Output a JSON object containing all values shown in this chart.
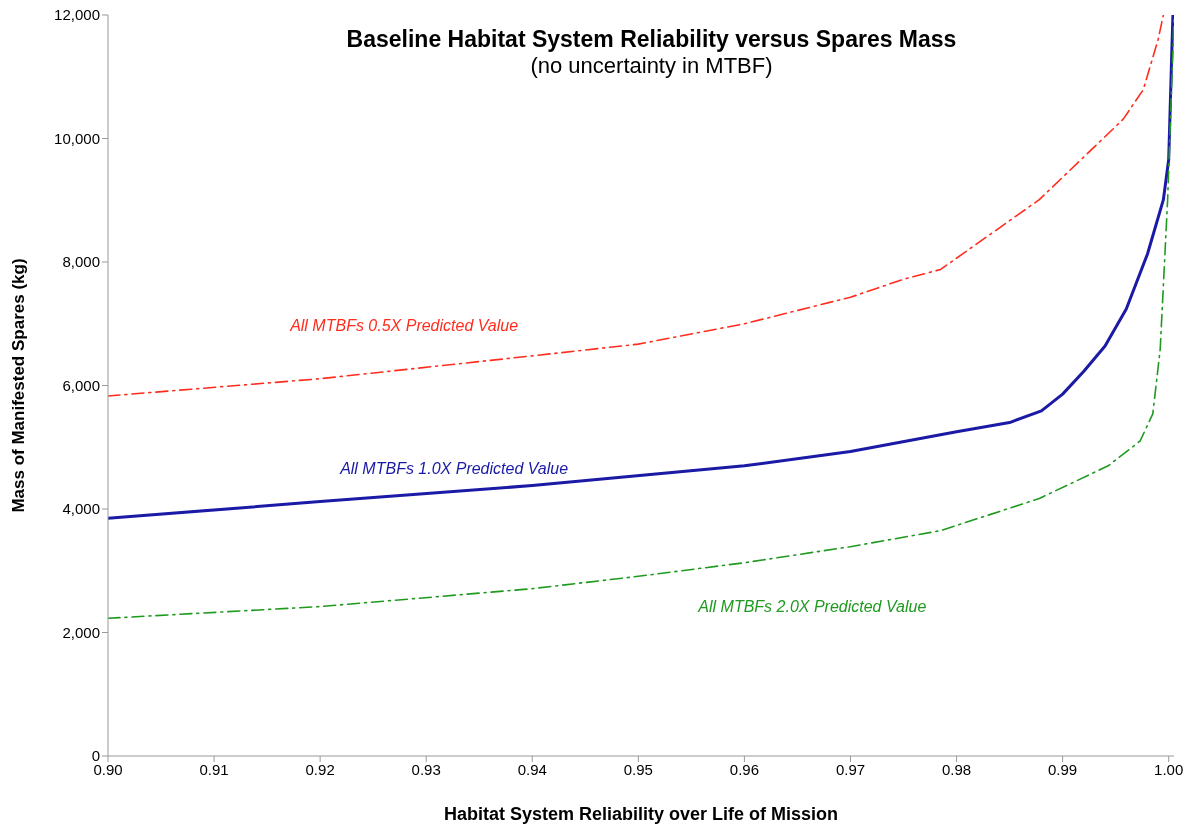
{
  "chart_data": {
    "type": "line",
    "title": "Baseline Habitat System Reliability versus Spares Mass",
    "subtitle": "(no uncertainty in MTBF)",
    "xlabel": "Habitat System Reliability over Life of Mission",
    "ylabel": "Mass of Manifested Spares (kg)",
    "series": [
      {
        "name": "All MTBFs 0.5X Predicted Value",
        "color": "#ff2d1e",
        "line_style": "dashdot",
        "x": [
          0.9,
          0.92,
          0.94,
          0.95,
          0.96,
          0.97,
          0.975,
          0.9785,
          0.9878,
          0.9957,
          0.9976,
          0.999,
          0.9995
        ],
        "values": [
          5830,
          6110,
          6480,
          6670,
          7000,
          7430,
          7720,
          7880,
          9010,
          10310,
          10790,
          11600,
          12000
        ]
      },
      {
        "name": "All MTBFs 1.0X Predicted Value",
        "color": "#1a1aa6",
        "line_style": "solid",
        "x": [
          0.9,
          0.92,
          0.94,
          0.96,
          0.97,
          0.98,
          0.985,
          0.988,
          0.99,
          0.992,
          0.994,
          0.996,
          0.998,
          0.9995,
          1.0,
          1.0003,
          1.0004
        ],
        "values": [
          3850,
          4120,
          4380,
          4700,
          4930,
          5250,
          5400,
          5590,
          5860,
          6230,
          6640,
          7240,
          8130,
          9010,
          9660,
          11440,
          12000
        ]
      },
      {
        "name": "All MTBFs 2.0X Predicted Value",
        "color": "#1f9a1f",
        "line_style": "dashdot",
        "x": [
          0.9,
          0.92,
          0.94,
          0.95,
          0.96,
          0.97,
          0.9785,
          0.9878,
          0.9943,
          0.9973,
          0.9985,
          0.9992,
          0.9999,
          1.0004,
          1.0005
        ],
        "values": [
          2230,
          2420,
          2710,
          2910,
          3130,
          3390,
          3650,
          4170,
          4700,
          5100,
          5540,
          6590,
          9010,
          11440,
          12000
        ]
      }
    ],
    "xlim": [
      0.9,
      1.0005
    ],
    "xticks": [
      {
        "value": 0.9,
        "label": "0.90"
      },
      0.91,
      0.92,
      0.93,
      0.94,
      0.95,
      0.96,
      0.97,
      0.98,
      0.99,
      {
        "value": 1,
        "label": "1.00"
      }
    ],
    "ylim": [
      0,
      12000
    ],
    "yticks": [
      0,
      {
        "value": 2000,
        "label": "2,000"
      },
      {
        "value": 4000,
        "label": "4,000"
      },
      {
        "value": 6000,
        "label": "6,000"
      },
      {
        "value": 8000,
        "label": "8,000"
      },
      {
        "value": 10000,
        "label": "10,000"
      },
      {
        "value": 12000,
        "label": "12,000"
      }
    ],
    "grid": false,
    "legend": false,
    "marker": "none"
  }
}
